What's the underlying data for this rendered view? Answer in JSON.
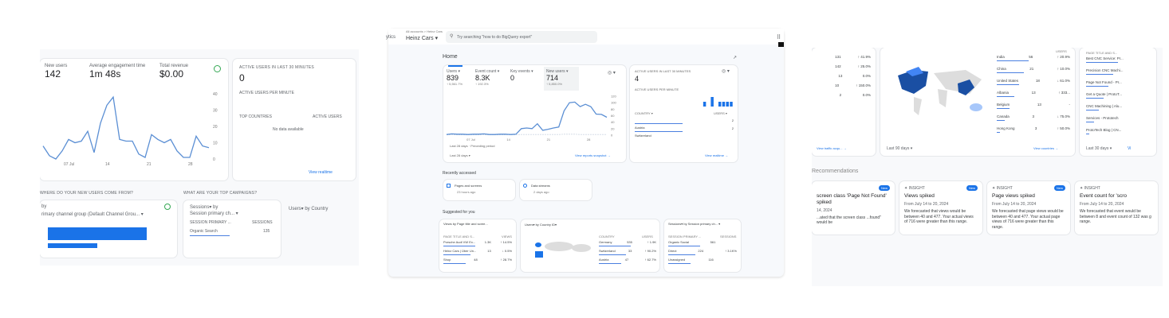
{
  "left": {
    "metrics": [
      {
        "label": "New users",
        "value": "142"
      },
      {
        "label": "Average engagement time",
        "value": "1m 48s"
      },
      {
        "label": "Total revenue",
        "value": "$0.00"
      }
    ],
    "chart": {
      "type": "line",
      "y_ticks": [
        "40",
        "30",
        "20",
        "10",
        "0"
      ],
      "x_ticks": [
        "07 Jul",
        "14",
        "21",
        "28"
      ],
      "ylim": [
        0,
        40
      ],
      "values": [
        8,
        2,
        0,
        5,
        12,
        10,
        11,
        17,
        4,
        22,
        33,
        38,
        12,
        11,
        11,
        3,
        1,
        15,
        12,
        10,
        12,
        5,
        1,
        1,
        14,
        8,
        7
      ]
    },
    "realtime": {
      "title": "ACTIVE USERS IN LAST 30 MINUTES",
      "value": "0",
      "sub": "ACTIVE USERS PER MINUTE",
      "col1": "TOP COUNTRIES",
      "col2": "ACTIVE USERS",
      "empty": "No data available",
      "link": "View realtime"
    },
    "section1": "WHERE DO YOUR NEW USERS COME FROM?",
    "section2": "WHAT ARE YOUR TOP CAMPAIGNS?",
    "card1": {
      "title1": "by",
      "title2": "rimary channel group (Default Channel Grou... ▾"
    },
    "card2": {
      "title1": "Sessions▾ by",
      "title2": "Session primary ch... ▾",
      "col1": "SESSION PRIMARY ...",
      "col2": "SESSIONS",
      "row1": "Organic Search",
      "row1val": "135"
    },
    "card3": {
      "title": "Users▾ by Country"
    }
  },
  "center": {
    "app": "ytics",
    "breadcrumb": "All accounts > Heinz Cars",
    "property": "Heinz Cars ▾",
    "search_placeholder": "Try searching \"how to do BigQuery export\"",
    "page_title": "Home",
    "metrics": [
      {
        "label": "Users ▾",
        "value": "839",
        "delta": "↑ 5,561.7%"
      },
      {
        "label": "Event count ▾",
        "value": "8.3K",
        "delta": "↑ 192.3%"
      },
      {
        "label": "Key events ▾",
        "value": "0",
        "delta": ""
      },
      {
        "label": "New users ▾",
        "value": "714",
        "delta": "↑ 5,850.0%"
      }
    ],
    "chart": {
      "type": "line",
      "y_ticks": [
        "120",
        "100",
        "80",
        "60",
        "40",
        "20",
        "0"
      ],
      "x_ticks": [
        "07 Jul",
        "14",
        "21",
        "28"
      ],
      "ylim": [
        0,
        120
      ],
      "values": [
        2,
        4,
        3,
        3,
        2,
        3,
        3,
        4,
        2,
        2,
        3,
        3,
        2,
        3,
        20,
        22,
        20,
        35,
        15,
        18,
        22,
        25,
        75,
        100,
        102,
        88,
        95,
        88,
        65,
        64,
        55
      ],
      "previous": [
        1,
        1,
        1,
        1,
        1,
        1,
        1,
        1,
        1,
        1,
        1,
        1,
        1,
        1,
        2,
        2,
        2,
        2,
        2,
        2,
        2,
        2,
        3,
        3,
        3,
        2,
        2,
        2,
        2,
        2,
        2
      ],
      "legend": [
        "Last 28 days",
        "Preceding period"
      ]
    },
    "date_range": "Last 28 days ▾",
    "view_link": "View reports snapshot →",
    "realtime": {
      "title": "ACTIVE USERS IN LAST 30 MINUTES",
      "value": "4",
      "sub": "ACTIVE USERS PER MINUTE",
      "col1": "COUNTRY ▾",
      "col2": "USERS ▾",
      "rows": [
        {
          "name": "Austria",
          "val": "2"
        },
        {
          "name": "Switzerland",
          "val": "2"
        }
      ],
      "bars": [
        0,
        0,
        0,
        0,
        0,
        0,
        0,
        0,
        0,
        0,
        0,
        0,
        0,
        0,
        0,
        0,
        0,
        0,
        1,
        0,
        2,
        0,
        1,
        1,
        1,
        1
      ],
      "link": "View realtime →"
    },
    "recent_title": "Recently accessed",
    "recent": [
      {
        "name": "Pages and screens",
        "time": "23 hours ago"
      },
      {
        "name": "Data streams",
        "time": "2 days ago"
      }
    ],
    "suggested_title": "Suggested for you",
    "sug1": {
      "title": "Views by Page title and scree...",
      "col1": "PAGE TITLE AND S...",
      "col2": "VIEWS",
      "rows": [
        [
          "Porsche Audi VW Ex...",
          "1.3K",
          "↑ 14.5%"
        ],
        [
          "Heinz Cars | Über Un...",
          "13",
          "↓ 0.5%"
        ],
        [
          "Shop",
          "48",
          "↑ 28.7%"
        ]
      ]
    },
    "sug2": {
      "title": "Users▾ by Country ID▾",
      "col1": "COUNTRY",
      "col2": "USERS",
      "rows": [
        [
          "Germany",
          "535",
          "↑ 1.9K"
        ],
        [
          "Switzerland",
          "33",
          "↑ 90.2%"
        ],
        [
          "Austria",
          "47",
          "↑ 62.7%"
        ]
      ]
    },
    "sug3": {
      "title": "Sessions▾ by Session primary ch... ▾",
      "col1": "SESSION PRIMARY ...",
      "col2": "SESSIONS",
      "rows": [
        [
          "Organic Social",
          "561",
          ""
        ],
        [
          "Direct",
          "224",
          "↑ 3.1K%"
        ],
        [
          "Unassigned",
          "116",
          ""
        ]
      ]
    }
  },
  "right": {
    "left_rows": [
      [
        "",
        "131",
        "↑ 41.9%"
      ],
      [
        "",
        "142",
        "↑ 25.0%"
      ],
      [
        "",
        "13",
        "0.0%"
      ],
      [
        "",
        "10",
        "↑ 150.0%"
      ],
      [
        "",
        "2",
        "0.0%"
      ]
    ],
    "left_link": "View traffic acqu... →",
    "map_range": "Last 90 days ▾",
    "countries_header": "USERS",
    "countries": [
      [
        "India",
        "56",
        "↑ 20.9%"
      ],
      [
        "China",
        "21",
        "↑ 10.0%"
      ],
      [
        "United States",
        "18",
        "↓ 61.0%"
      ],
      [
        "Albania",
        "13",
        "↑ 333..."
      ],
      [
        "Belgium",
        "13",
        "-"
      ],
      [
        "Canada",
        "3",
        "↓ 75.0%"
      ],
      [
        "Hong Kong",
        "3",
        "↑ 50.0%"
      ]
    ],
    "countries_link": "View countries →",
    "pages_header": "PAGE TITLE AND S...",
    "pages": [
      "Best CNC Service: Pr...",
      "Precision CNC Machi...",
      "Page Not Found - Pr...",
      "Get a Quote | ProtoT...",
      "CNC Machining | Alu...",
      "Services - Prototech",
      "ProtoTech Blog | CN..."
    ],
    "pages_range": "Last 30 days ▾",
    "pages_link": "Vi",
    "section": "Recommendations",
    "insights": [
      {
        "label": "",
        "badge": "New",
        "title": "screen class 'Page Not Found' spiked",
        "date": "14, 2024",
        "body": "...ated that the screen class ...found\" would be"
      },
      {
        "label": "INSIGHT",
        "badge": "New",
        "title": "Views spiked",
        "date": "From July 14 to 20, 2024",
        "body": "We forecasted that views would be between 40 and 477. Your actual views of 716 were greater than this range."
      },
      {
        "label": "INSIGHT",
        "badge": "New",
        "title": "Page views spiked",
        "date": "From July 14 to 20, 2024",
        "body": "We forecasted that page views would be between 40 and 477. Your actual page views of 716 were greater than this range."
      },
      {
        "label": "INSIGHT",
        "badge": "",
        "title": "Event count for 'scro",
        "date": "From July 14 to 20, 2024",
        "body": "We forecasted that event would be between 8 and event count of 132 was g range."
      }
    ]
  },
  "colors": {
    "accent": "#1a73e8",
    "line": "#5b8fd4",
    "map_dark": "#1a4fa3",
    "map_mid": "#4285f4",
    "map_light": "#a7c7fa"
  }
}
